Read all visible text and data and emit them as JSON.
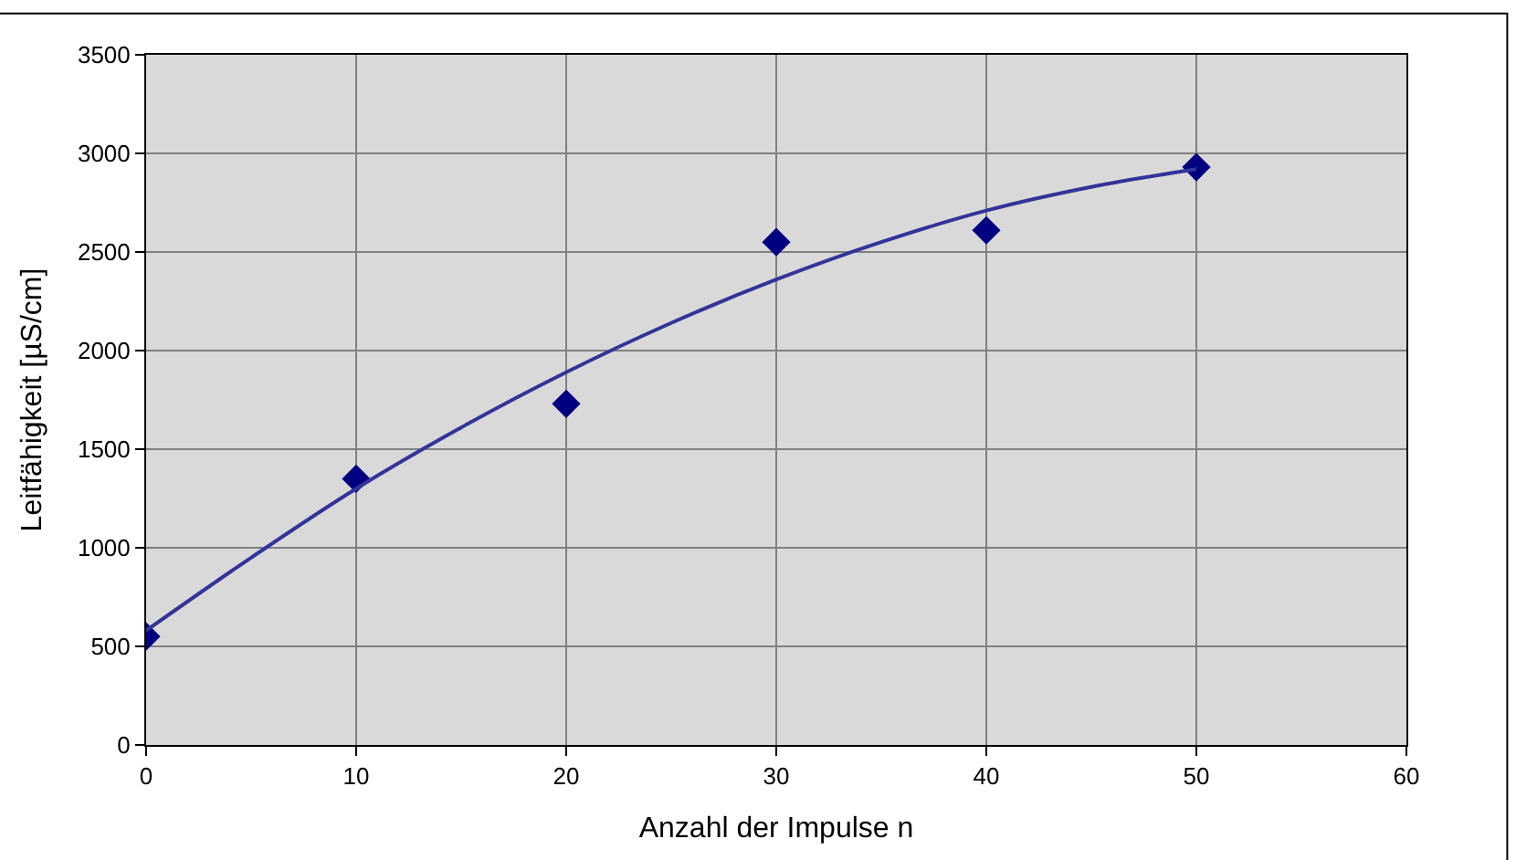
{
  "chart_data": {
    "type": "scatter",
    "xlabel": "Anzahl der Impulse n",
    "ylabel": "Leitfähigkeit [µS/cm]",
    "series": [
      {
        "color": "#000080",
        "marker": "diamond",
        "x": [
          0,
          10,
          20,
          30,
          40,
          50
        ],
        "values": [
          550,
          1350,
          1730,
          2550,
          2610,
          2930
        ]
      },
      {
        "type": "line",
        "color": "#333399",
        "marker": "none",
        "x": [
          0,
          5,
          10,
          15,
          20,
          25,
          30,
          35,
          40,
          45,
          50
        ],
        "values": [
          580,
          950,
          1300,
          1610,
          1890,
          2140,
          2360,
          2550,
          2710,
          2830,
          2920
        ]
      }
    ],
    "xlim": [
      0,
      60
    ],
    "xticks": [
      0,
      10,
      20,
      30,
      40,
      50,
      60
    ],
    "ylim": [
      0,
      3500
    ],
    "yticks": [
      0,
      500,
      1000,
      1500,
      2000,
      2500,
      3000,
      3500
    ],
    "grid": true
  }
}
